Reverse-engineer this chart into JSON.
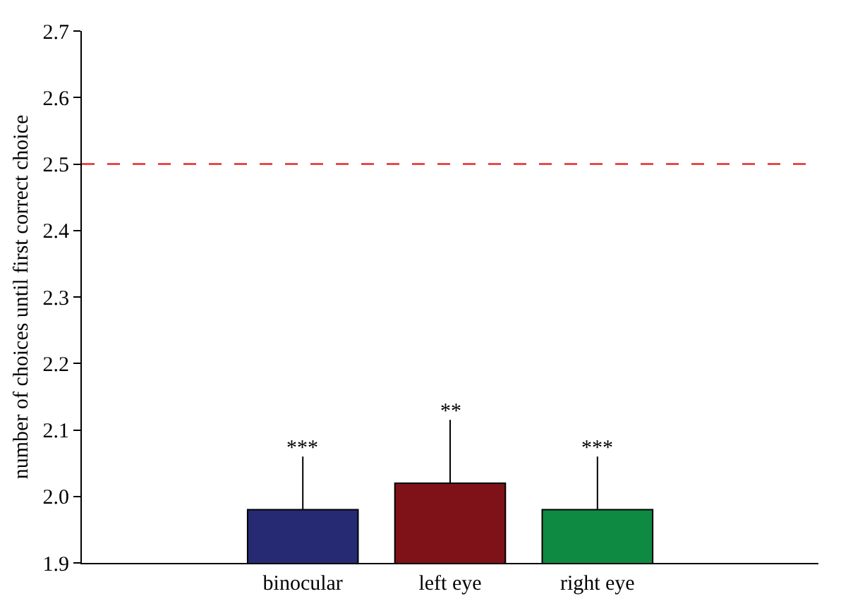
{
  "chart_data": {
    "type": "bar",
    "ylabel": "number of choices until first correct choice",
    "categories": [
      "binocular",
      "left eye",
      "right eye"
    ],
    "values": [
      1.98,
      2.02,
      1.98
    ],
    "colors": [
      "#262a73",
      "#7f1119",
      "#0f8a43"
    ],
    "errors": [
      [
        1.98,
        2.06
      ],
      [
        2.02,
        2.115
      ],
      [
        1.98,
        2.06
      ]
    ],
    "ylim": [
      1.9,
      2.7
    ],
    "yticks": [
      1.9,
      {
        "value": 2,
        "label": "2.0"
      },
      2.1,
      2.2,
      2.3,
      2.4,
      2.5,
      2.6,
      2.7
    ],
    "ref_lines": [
      {
        "axis": "y",
        "value": 2.5,
        "color": "#e8292b",
        "line_style": "dashed"
      }
    ],
    "annotations": [
      {
        "text": "***",
        "x": "binocular",
        "y": 2.06
      },
      {
        "text": "**",
        "x": "left eye",
        "y": 2.115
      },
      {
        "text": "***",
        "x": "right eye",
        "y": 2.06
      }
    ],
    "grid": false
  }
}
